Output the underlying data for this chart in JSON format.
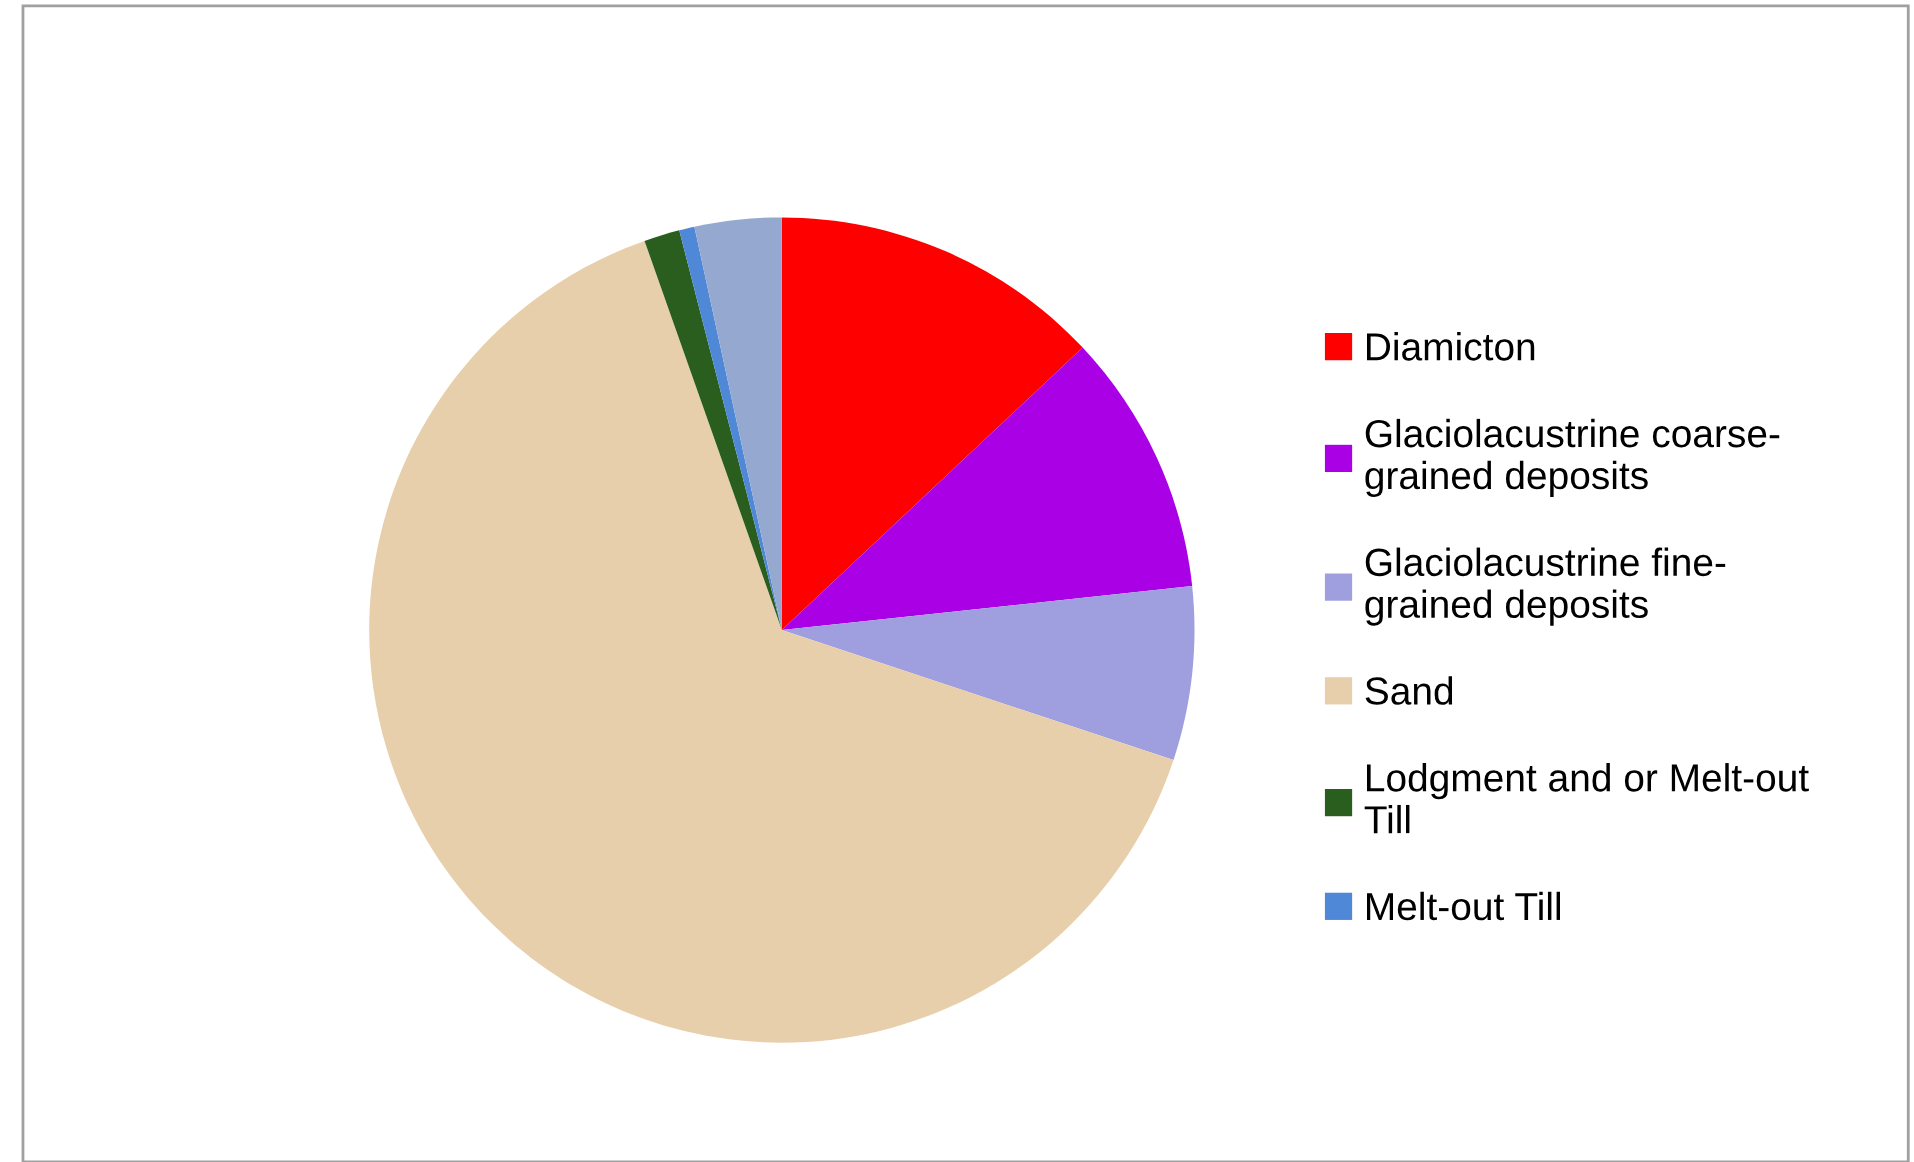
{
  "chart_data": {
    "type": "pie",
    "categories": [
      "Diamicton",
      "Glaciolacustrine coarse-grained deposits",
      "Glaciolacustrine fine-grained deposits",
      "Sand",
      "Lodgment and or Melt-out Till",
      "Melt-out Till",
      null
    ],
    "values": [
      13.0,
      10.3,
      6.8,
      64.5,
      1.4,
      0.6,
      3.4
    ],
    "colors": [
      "#ff0000",
      "#aa00e6",
      "#9f9fdf",
      "#e8cfab",
      "#2a5e1f",
      "#4f88d6",
      "#95a9d0"
    ],
    "legend": "right"
  }
}
